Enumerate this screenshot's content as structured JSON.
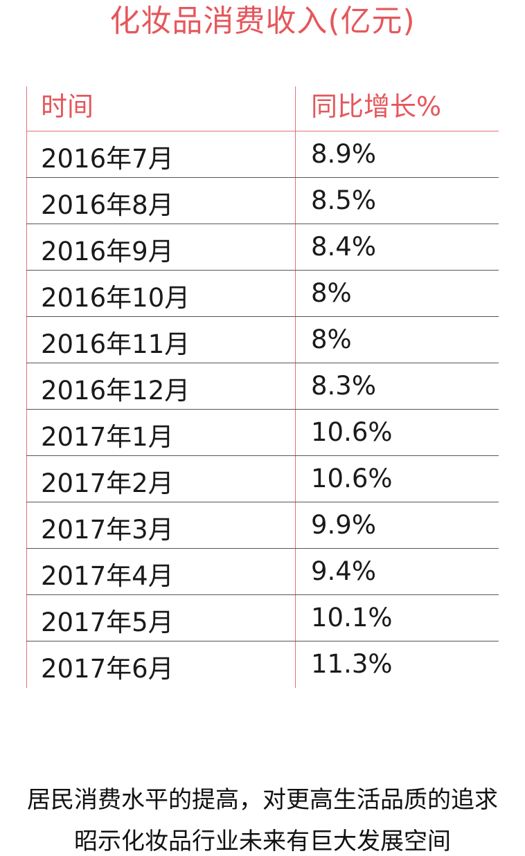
{
  "title": "化妆品消费收入(亿元)",
  "chart_data": {
    "type": "table",
    "columns": [
      "时间",
      "同比增长%"
    ],
    "rows": [
      {
        "time": "2016年7月",
        "growth": "8.9%"
      },
      {
        "time": "2016年8月",
        "growth": "8.5%"
      },
      {
        "time": "2016年9月",
        "growth": "8.4%"
      },
      {
        "time": "2016年10月",
        "growth": "8%"
      },
      {
        "time": "2016年11月",
        "growth": "8%"
      },
      {
        "time": "2016年12月",
        "growth": "8.3%"
      },
      {
        "time": "2017年1月",
        "growth": "10.6%"
      },
      {
        "time": "2017年2月",
        "growth": "10.6%"
      },
      {
        "time": "2017年3月",
        "growth": "9.9%"
      },
      {
        "time": "2017年4月",
        "growth": "9.4%"
      },
      {
        "time": "2017年5月",
        "growth": "10.1%"
      },
      {
        "time": "2017年6月",
        "growth": "11.3%"
      }
    ]
  },
  "footer": {
    "line1": "居民消费水平的提高，对更高生活品质的追求",
    "line2": "昭示化妆品行业未来有巨大发展空间"
  },
  "colors": {
    "accent": "#e5575c",
    "text": "#1a1a1a"
  }
}
